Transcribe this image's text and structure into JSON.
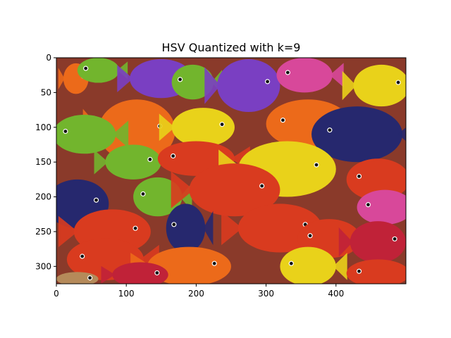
{
  "figure": {
    "title": "HSV Quantized with k=9",
    "x_ticks": [
      "0",
      "100",
      "200",
      "300",
      "400"
    ],
    "y_ticks": [
      "0",
      "50",
      "100",
      "150",
      "200",
      "250",
      "300"
    ],
    "image_extent": {
      "x": [
        0,
        500
      ],
      "y": [
        0,
        325
      ]
    }
  },
  "palette": {
    "red": "#d93b1f",
    "orange": "#ec6a1a",
    "yellow": "#e9d21a",
    "green": "#72b52d",
    "purple": "#7a3fc2",
    "pink": "#d8489a",
    "navy": "#26286e",
    "crimson": "#c02238",
    "tan": "#b58a5a"
  },
  "fish": [
    {
      "color": "orange",
      "x": 28,
      "y": 30,
      "rx": 18,
      "ry": 22
    },
    {
      "color": "green",
      "x": 60,
      "y": 18,
      "rx": 30,
      "ry": 18
    },
    {
      "color": "purple",
      "x": 150,
      "y": 30,
      "rx": 45,
      "ry": 28
    },
    {
      "color": "green",
      "x": 195,
      "y": 35,
      "rx": 30,
      "ry": 25
    },
    {
      "color": "purple",
      "x": 275,
      "y": 40,
      "rx": 45,
      "ry": 38
    },
    {
      "color": "pink",
      "x": 355,
      "y": 25,
      "rx": 40,
      "ry": 25
    },
    {
      "color": "yellow",
      "x": 465,
      "y": 40,
      "rx": 40,
      "ry": 30
    },
    {
      "color": "orange",
      "x": 360,
      "y": 95,
      "rx": 60,
      "ry": 35
    },
    {
      "color": "orange",
      "x": 115,
      "y": 105,
      "rx": 55,
      "ry": 45
    },
    {
      "color": "green",
      "x": 40,
      "y": 110,
      "rx": 45,
      "ry": 28
    },
    {
      "color": "yellow",
      "x": 210,
      "y": 100,
      "rx": 45,
      "ry": 28
    },
    {
      "color": "navy",
      "x": 430,
      "y": 110,
      "rx": 65,
      "ry": 40
    },
    {
      "color": "green",
      "x": 110,
      "y": 150,
      "rx": 40,
      "ry": 25
    },
    {
      "color": "red",
      "x": 200,
      "y": 145,
      "rx": 55,
      "ry": 25
    },
    {
      "color": "yellow",
      "x": 330,
      "y": 160,
      "rx": 70,
      "ry": 40
    },
    {
      "color": "red",
      "x": 460,
      "y": 175,
      "rx": 45,
      "ry": 30
    },
    {
      "color": "navy",
      "x": 30,
      "y": 210,
      "rx": 45,
      "ry": 35
    },
    {
      "color": "green",
      "x": 145,
      "y": 200,
      "rx": 35,
      "ry": 28
    },
    {
      "color": "red",
      "x": 255,
      "y": 190,
      "rx": 65,
      "ry": 38
    },
    {
      "color": "pink",
      "x": 470,
      "y": 215,
      "rx": 40,
      "ry": 25
    },
    {
      "color": "red",
      "x": 80,
      "y": 250,
      "rx": 55,
      "ry": 32
    },
    {
      "color": "navy",
      "x": 185,
      "y": 245,
      "rx": 28,
      "ry": 35
    },
    {
      "color": "red",
      "x": 320,
      "y": 245,
      "rx": 60,
      "ry": 35
    },
    {
      "color": "red",
      "x": 390,
      "y": 260,
      "rx": 45,
      "ry": 28
    },
    {
      "color": "crimson",
      "x": 460,
      "y": 265,
      "rx": 40,
      "ry": 30
    },
    {
      "color": "red",
      "x": 70,
      "y": 290,
      "rx": 55,
      "ry": 30
    },
    {
      "color": "orange",
      "x": 190,
      "y": 300,
      "rx": 60,
      "ry": 28
    },
    {
      "color": "yellow",
      "x": 360,
      "y": 300,
      "rx": 40,
      "ry": 28
    },
    {
      "color": "crimson",
      "x": 120,
      "y": 312,
      "rx": 40,
      "ry": 18
    },
    {
      "color": "red",
      "x": 460,
      "y": 310,
      "rx": 45,
      "ry": 20
    },
    {
      "color": "tan",
      "x": 30,
      "y": 318,
      "rx": 30,
      "ry": 10
    }
  ]
}
